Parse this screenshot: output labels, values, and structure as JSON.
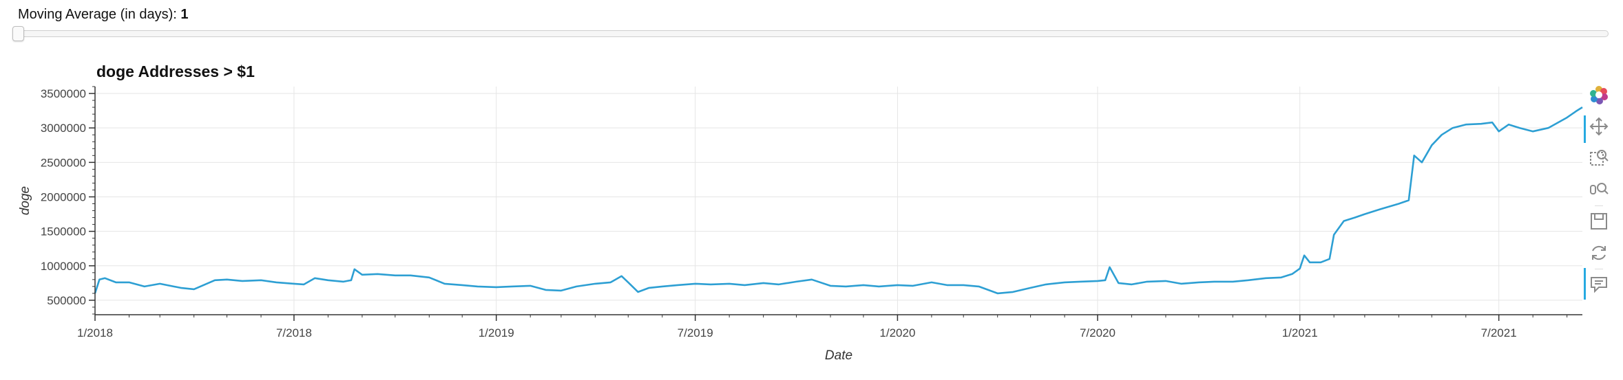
{
  "slider": {
    "label": "Moving Average (in days): ",
    "value": "1",
    "min": 1,
    "position_fraction": 0
  },
  "colors": {
    "line": "#2d9fd3",
    "grid": "#e5e5e5",
    "axis": "#333333",
    "toolbar_active": "#26aae1"
  },
  "toolbar": {
    "icons": [
      "bokeh-logo-icon",
      "pan-icon",
      "box-zoom-icon",
      "wheel-zoom-icon",
      "save-icon",
      "reset-icon",
      "hover-icon"
    ]
  },
  "chart_data": {
    "type": "line",
    "title": "doge Addresses > $1",
    "xlabel": "Date",
    "ylabel": "doge",
    "x_ticks": [
      "1/2018",
      "7/2018",
      "1/2019",
      "7/2019",
      "1/2020",
      "7/2020",
      "1/2021",
      "7/2021"
    ],
    "x_tick_values": [
      "2018-01-01",
      "2018-07-01",
      "2019-01-01",
      "2019-07-01",
      "2020-01-01",
      "2020-07-01",
      "2021-01-01",
      "2021-07-01"
    ],
    "y_ticks": [
      "500000",
      "1000000",
      "1500000",
      "2000000",
      "2500000",
      "3000000",
      "3500000"
    ],
    "y_tick_values": [
      500000,
      1000000,
      1500000,
      2000000,
      2500000,
      3000000,
      3500000
    ],
    "xlim": [
      "2018-01-01",
      "2021-09-15"
    ],
    "ylim": [
      290000,
      3600000
    ],
    "grid": true,
    "series": [
      {
        "x": [
          "2018-01-01",
          "2018-01-05",
          "2018-01-10",
          "2018-01-20",
          "2018-02-01",
          "2018-02-15",
          "2018-03-01",
          "2018-03-20",
          "2018-04-01",
          "2018-04-20",
          "2018-05-01",
          "2018-05-15",
          "2018-06-01",
          "2018-06-15",
          "2018-07-01",
          "2018-07-10",
          "2018-07-20",
          "2018-08-01",
          "2018-08-15",
          "2018-08-22",
          "2018-08-25",
          "2018-09-01",
          "2018-09-15",
          "2018-10-01",
          "2018-10-15",
          "2018-11-01",
          "2018-11-15",
          "2018-12-01",
          "2018-12-15",
          "2019-01-01",
          "2019-01-15",
          "2019-02-01",
          "2019-02-15",
          "2019-03-01",
          "2019-03-15",
          "2019-04-01",
          "2019-04-15",
          "2019-04-25",
          "2019-05-01",
          "2019-05-10",
          "2019-05-20",
          "2019-06-01",
          "2019-06-15",
          "2019-07-01",
          "2019-07-15",
          "2019-08-01",
          "2019-08-15",
          "2019-09-01",
          "2019-09-15",
          "2019-10-01",
          "2019-10-15",
          "2019-11-01",
          "2019-11-15",
          "2019-12-01",
          "2019-12-15",
          "2020-01-01",
          "2020-01-15",
          "2020-02-01",
          "2020-02-15",
          "2020-03-01",
          "2020-03-15",
          "2020-04-01",
          "2020-04-15",
          "2020-05-01",
          "2020-05-15",
          "2020-06-01",
          "2020-06-15",
          "2020-07-01",
          "2020-07-08",
          "2020-07-12",
          "2020-07-20",
          "2020-08-01",
          "2020-08-15",
          "2020-09-01",
          "2020-09-15",
          "2020-10-01",
          "2020-10-15",
          "2020-11-01",
          "2020-11-15",
          "2020-12-01",
          "2020-12-15",
          "2020-12-25",
          "2021-01-01",
          "2021-01-05",
          "2021-01-10",
          "2021-01-20",
          "2021-01-28",
          "2021-02-01",
          "2021-02-10",
          "2021-02-20",
          "2021-03-01",
          "2021-03-15",
          "2021-04-01",
          "2021-04-10",
          "2021-04-15",
          "2021-04-22",
          "2021-05-01",
          "2021-05-10",
          "2021-05-20",
          "2021-06-01",
          "2021-06-15",
          "2021-06-25",
          "2021-07-01",
          "2021-07-10",
          "2021-07-20",
          "2021-08-01",
          "2021-08-15",
          "2021-09-01",
          "2021-09-10",
          "2021-09-15"
        ],
        "y": [
          600000,
          800000,
          820000,
          760000,
          760000,
          700000,
          740000,
          680000,
          660000,
          790000,
          800000,
          780000,
          790000,
          760000,
          740000,
          730000,
          820000,
          790000,
          770000,
          790000,
          950000,
          870000,
          880000,
          860000,
          860000,
          830000,
          740000,
          720000,
          700000,
          690000,
          700000,
          710000,
          650000,
          640000,
          700000,
          740000,
          760000,
          850000,
          760000,
          620000,
          680000,
          700000,
          720000,
          740000,
          730000,
          740000,
          720000,
          750000,
          730000,
          770000,
          800000,
          710000,
          700000,
          720000,
          700000,
          720000,
          710000,
          760000,
          720000,
          720000,
          700000,
          600000,
          620000,
          680000,
          730000,
          760000,
          770000,
          780000,
          790000,
          980000,
          750000,
          730000,
          770000,
          780000,
          740000,
          760000,
          770000,
          770000,
          790000,
          820000,
          830000,
          880000,
          960000,
          1150000,
          1050000,
          1050000,
          1100000,
          1450000,
          1650000,
          1700000,
          1750000,
          1820000,
          1900000,
          1950000,
          2600000,
          2500000,
          2750000,
          2900000,
          3000000,
          3050000,
          3060000,
          3080000,
          2950000,
          3050000,
          3000000,
          2950000,
          3000000,
          3150000,
          3250000,
          3300000
        ]
      }
    ]
  }
}
